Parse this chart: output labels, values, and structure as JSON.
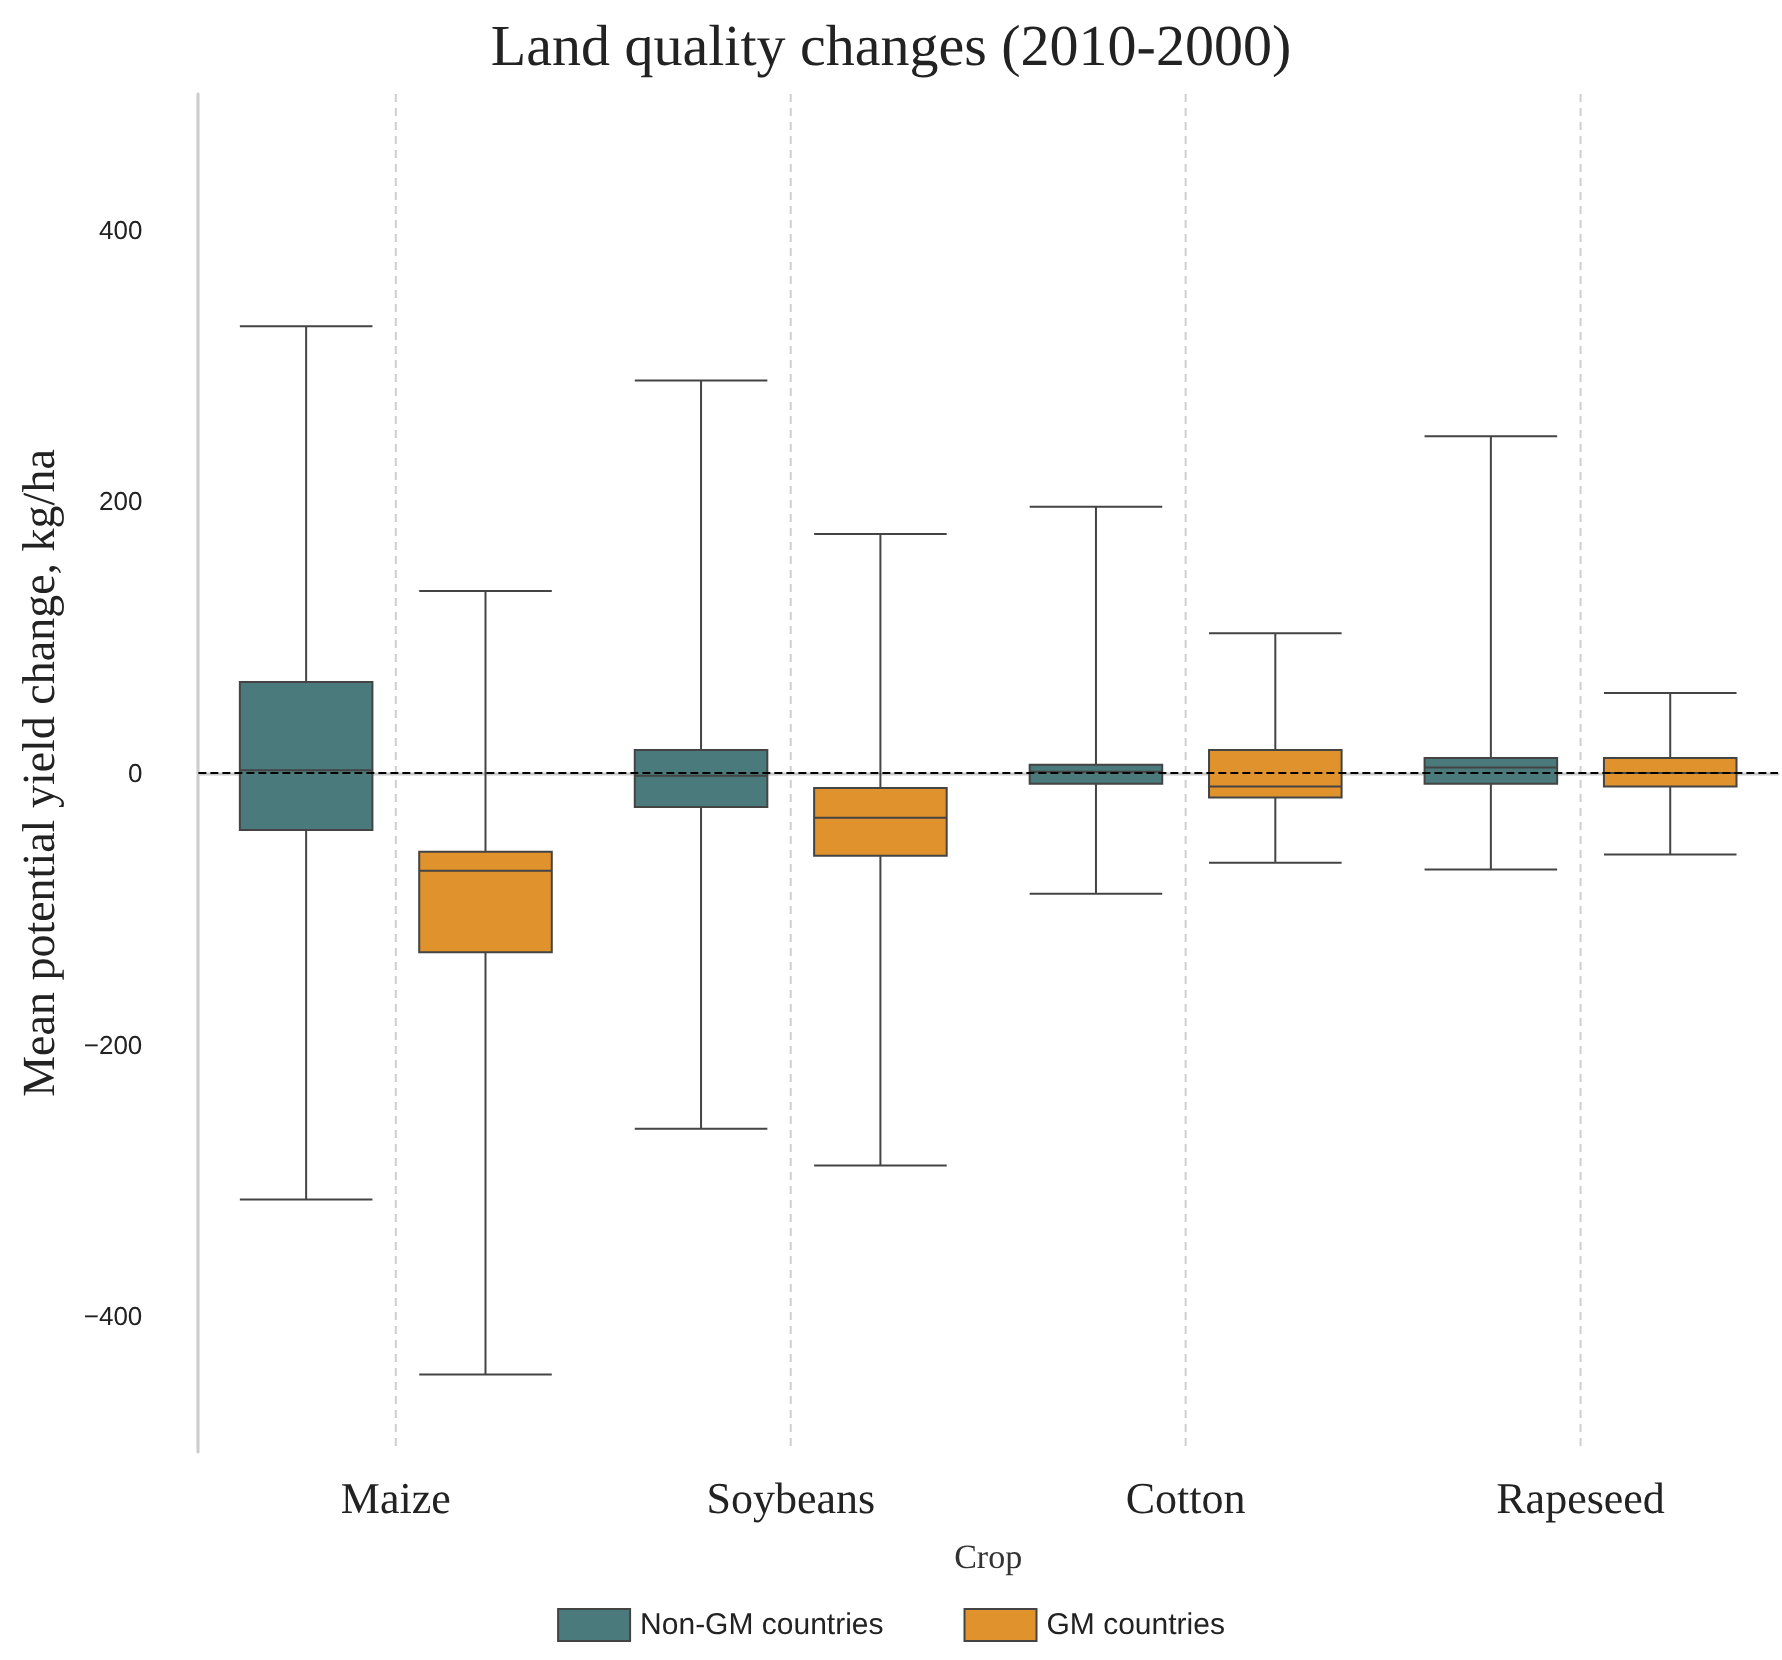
{
  "chart_data": {
    "type": "box",
    "title": "Land quality changes (2010-2000)",
    "xlabel": "Crop",
    "ylabel": "Mean potential yield change, kg/ha",
    "categories": [
      "Maize",
      "Soybeans",
      "Cotton",
      "Rapeseed"
    ],
    "series": [
      {
        "name": "Non-GM countries",
        "color": "#4a7a7b",
        "boxes": [
          {
            "low": -314,
            "q1": -42,
            "median": 2,
            "q3": 67,
            "high": 329
          },
          {
            "low": -262,
            "q1": -25,
            "median": -2,
            "q3": 17,
            "high": 289
          },
          {
            "low": -89,
            "q1": -8,
            "median": 1,
            "q3": 6,
            "high": 196
          },
          {
            "low": -71,
            "q1": -8,
            "median": 4,
            "q3": 11,
            "high": 248
          }
        ]
      },
      {
        "name": "GM countries",
        "color": "#e0922c",
        "boxes": [
          {
            "low": -443,
            "q1": -132,
            "median": -72,
            "q3": -58,
            "high": 134
          },
          {
            "low": -289,
            "q1": -61,
            "median": -33,
            "q3": -11,
            "high": 176
          },
          {
            "low": -66,
            "q1": -18,
            "median": -10,
            "q3": 17,
            "high": 103
          },
          {
            "low": -60,
            "q1": -10,
            "median": 0,
            "q3": 11,
            "high": 59
          }
        ]
      }
    ],
    "ylim": [
      -500,
      500
    ],
    "yticks": [
      -400,
      -200,
      0,
      200,
      400
    ],
    "ref_lines": [
      {
        "axis": "y",
        "value": 0,
        "color": "#000000",
        "line_style": "dashed"
      }
    ],
    "grid": "x",
    "legend": "bottom"
  }
}
